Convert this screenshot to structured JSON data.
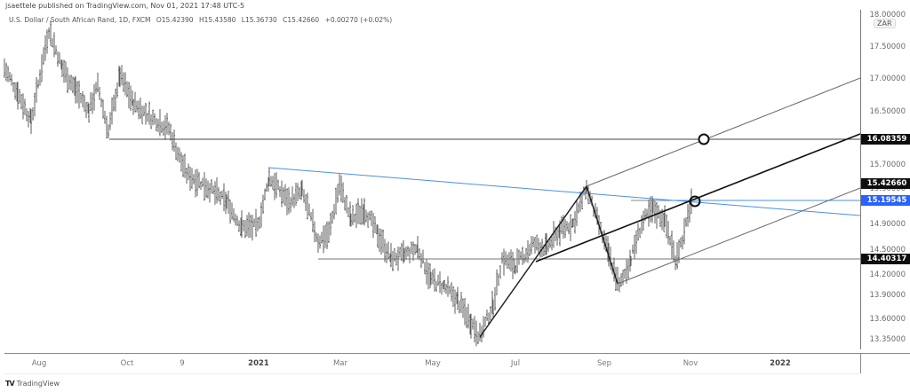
{
  "header": {
    "publisher_line": "jsaettele published on TradingView.com, Nov 01, 2021 17:48 UTC-5",
    "symbol": "U.S. Dollar / South African Rand, 1D, FXCM",
    "open": "O15.42390",
    "high": "H15.43580",
    "low": "L15.36730",
    "close": "C15.42660",
    "change": "+0.00270 (+0.02%)"
  },
  "price_axis": {
    "currency": "ZAR",
    "ticks": [
      "18.00000",
      "17.50000",
      "17.00000",
      "16.50000",
      "15.70000",
      "15.30000",
      "14.90000",
      "14.50000",
      "14.20000",
      "13.90000",
      "13.60000",
      "13.35000"
    ],
    "tags": {
      "level_top": "16.08359",
      "last_price": "15.42660",
      "blue_trendline": "15.19545",
      "level_bottom": "14.40317"
    },
    "colors": {
      "tag_black": "#0e0e0e",
      "tag_blue": "#2962ff"
    }
  },
  "time_axis": {
    "labels": [
      "Aug",
      "Oct",
      "9",
      "2021",
      "Mar",
      "May",
      "Jul",
      "Sep",
      "Nov",
      "2022"
    ]
  },
  "footer": {
    "brand": "TradingView",
    "brand_mark": "TV"
  },
  "chart_data": {
    "type": "ohlc-bar",
    "title": "U.S. Dollar / South African Rand, 1D, FXCM",
    "symbol": "USDZAR",
    "timeframe": "1D",
    "ylabel": "ZAR",
    "ylim": [
      13.3,
      18.0
    ],
    "x_ticks": [
      "Aug",
      "Oct",
      "9",
      "2021",
      "Mar",
      "May",
      "Jul",
      "Sep",
      "Nov",
      "2022"
    ],
    "y_ticks": [
      18.0,
      17.5,
      17.0,
      16.5,
      15.7,
      15.3,
      14.9,
      14.5,
      14.2,
      13.9,
      13.6,
      13.35
    ],
    "last_bar": {
      "open": 15.4239,
      "high": 15.4358,
      "low": 15.3673,
      "close": 15.4266,
      "change": 0.0027,
      "change_pct": 0.02
    },
    "approx_swings": [
      {
        "x": "Jul 2020",
        "price": 17.2
      },
      {
        "x": "Aug 2020",
        "price": 17.75
      },
      {
        "x": "late Aug 2020",
        "price": 16.6
      },
      {
        "x": "Sep 2020",
        "price": 17.1
      },
      {
        "x": "late Sep 2020",
        "price": 16.1
      },
      {
        "x": "Nov 2020",
        "price": 15.3
      },
      {
        "x": "Dec 2020",
        "price": 14.6
      },
      {
        "x": "Jan 2021",
        "price": 15.6
      },
      {
        "x": "Feb 2021",
        "price": 14.5
      },
      {
        "x": "Mar 2021",
        "price": 15.5
      },
      {
        "x": "Apr 2021",
        "price": 14.4
      },
      {
        "x": "May 2021",
        "price": 14.0
      },
      {
        "x": "Jun 2021",
        "price": 13.4
      },
      {
        "x": "Jul 2021",
        "price": 14.5
      },
      {
        "x": "Aug 2021",
        "price": 15.3
      },
      {
        "x": "Sep 2021",
        "price": 14.1
      },
      {
        "x": "Sep-Oct 2021",
        "price": 15.2
      },
      {
        "x": "Oct 2021",
        "price": 14.4
      },
      {
        "x": "Nov 01 2021",
        "price": 15.43
      }
    ],
    "annotations": [
      {
        "type": "horizontal",
        "price": 16.08359,
        "label": "16.08359"
      },
      {
        "type": "horizontal",
        "price": 14.40317,
        "label": "14.40317"
      },
      {
        "type": "trendline",
        "color": "#2962ff",
        "label": "15.19545",
        "desc": "descending resistance from Jan 2021 high"
      },
      {
        "type": "parallel-channel",
        "desc": "ascending channel from Sep 2021 low, with midline"
      },
      {
        "type": "circle",
        "desc": "target at channel top / 16.08 level"
      },
      {
        "type": "circle",
        "desc": "current price at channel midline / blue trendline"
      }
    ]
  }
}
